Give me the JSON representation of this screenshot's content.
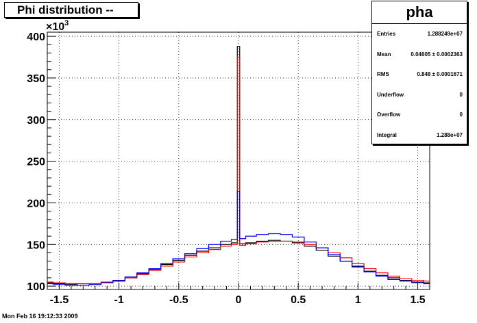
{
  "chart_data": {
    "type": "line",
    "title": "Phi distribution --",
    "y_multiplier": "×10",
    "y_multiplier_exp": "3",
    "xlim": [
      -1.6,
      1.6
    ],
    "ylim": [
      96,
      405
    ],
    "grid": true,
    "x_ticks": [
      -1.5,
      -1,
      -0.5,
      0,
      0.5,
      1,
      1.5
    ],
    "x_tick_labels": [
      "-1.5",
      "-1",
      "-0.5",
      "0",
      "0.5",
      "1",
      "1.5"
    ],
    "y_ticks": [
      100,
      150,
      200,
      250,
      300,
      350,
      400
    ],
    "y_tick_labels": [
      "100",
      "150",
      "200",
      "250",
      "300",
      "350",
      "400"
    ],
    "series": [
      {
        "color": "#000000",
        "x": [
          -1.6,
          -1.5,
          -1.4,
          -1.3,
          -1.2,
          -1.1,
          -1.0,
          -0.9,
          -0.8,
          -0.7,
          -0.6,
          -0.5,
          -0.4,
          -0.3,
          -0.2,
          -0.1,
          -0.02,
          0.0,
          0.02,
          0.1,
          0.2,
          0.3,
          0.4,
          0.5,
          0.6,
          0.7,
          0.8,
          0.9,
          1.0,
          1.1,
          1.2,
          1.3,
          1.4,
          1.5,
          1.6
        ],
        "y": [
          104,
          103,
          102,
          101,
          102,
          104,
          106,
          110,
          115,
          120,
          126,
          131,
          137,
          142,
          146,
          150,
          152,
          388,
          151,
          152,
          154,
          155,
          154,
          152,
          148,
          143,
          136,
          130,
          124,
          118,
          113,
          110,
          107,
          105,
          104
        ]
      },
      {
        "color": "#ff0000",
        "x": [
          -1.6,
          -1.5,
          -1.4,
          -1.3,
          -1.2,
          -1.1,
          -1.0,
          -0.9,
          -0.8,
          -0.7,
          -0.6,
          -0.5,
          -0.4,
          -0.3,
          -0.2,
          -0.1,
          -0.02,
          0.0,
          0.02,
          0.1,
          0.2,
          0.3,
          0.4,
          0.5,
          0.6,
          0.7,
          0.8,
          0.9,
          1.0,
          1.1,
          1.2,
          1.3,
          1.4,
          1.5,
          1.6
        ],
        "y": [
          105,
          104,
          103,
          103,
          103,
          105,
          107,
          110,
          114,
          119,
          124,
          129,
          135,
          140,
          144,
          148,
          150,
          375,
          149,
          151,
          153,
          154,
          154,
          153,
          150,
          146,
          140,
          134,
          127,
          121,
          116,
          112,
          109,
          107,
          106
        ]
      },
      {
        "color": "#0000ff",
        "x": [
          -1.6,
          -1.5,
          -1.4,
          -1.3,
          -1.2,
          -1.1,
          -1.0,
          -0.9,
          -0.8,
          -0.7,
          -0.6,
          -0.5,
          -0.4,
          -0.3,
          -0.2,
          -0.1,
          -0.02,
          0.0,
          0.02,
          0.1,
          0.2,
          0.3,
          0.4,
          0.5,
          0.6,
          0.7,
          0.8,
          0.9,
          1.0,
          1.1,
          1.2,
          1.3,
          1.4,
          1.5,
          1.6
        ],
        "y": [
          103,
          102,
          101,
          101,
          102,
          104,
          107,
          111,
          116,
          121,
          127,
          133,
          139,
          145,
          150,
          154,
          156,
          214,
          157,
          160,
          162,
          163,
          162,
          159,
          153,
          146,
          138,
          130,
          123,
          117,
          112,
          108,
          106,
          104,
          103
        ]
      }
    ]
  },
  "stats": {
    "title": "pha",
    "rows": [
      {
        "label": "Entries",
        "value": "1.288249e+07"
      },
      {
        "label": "Mean",
        "value": "0.04605 ± 0.0002363"
      },
      {
        "label": "RMS",
        "value": "0.848 ± 0.0001671"
      },
      {
        "label": "Underflow",
        "value": "0"
      },
      {
        "label": "Overflow",
        "value": "0"
      },
      {
        "label": "Integral",
        "value": "1.288e+07"
      }
    ]
  },
  "timestamp": "Mon Feb 16 19:12:33 2009"
}
